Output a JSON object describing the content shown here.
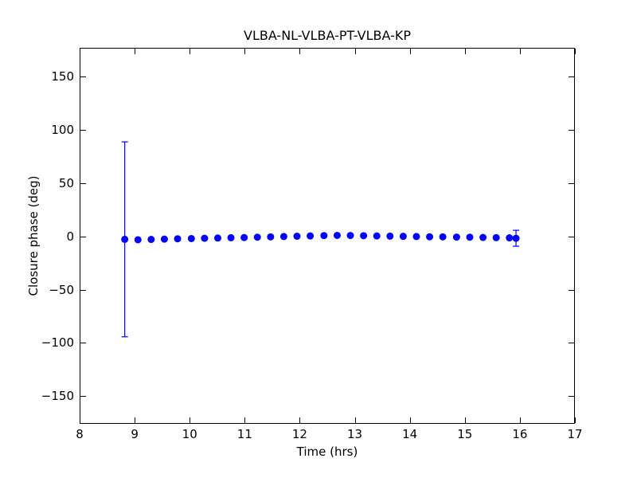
{
  "chart_data": {
    "type": "scatter",
    "title": "VLBA-NL-VLBA-PT-VLBA-KP",
    "xlabel": "Time (hrs)",
    "ylabel": "Closure phase (deg)",
    "xlim": [
      8,
      17
    ],
    "ylim": [
      -176,
      177
    ],
    "xticks": [
      8,
      9,
      10,
      11,
      12,
      13,
      14,
      15,
      16,
      17
    ],
    "xtick_labels": [
      "8",
      "9",
      "10",
      "11",
      "12",
      "13",
      "14",
      "15",
      "16",
      "17"
    ],
    "yticks": [
      150,
      100,
      50,
      0,
      -50,
      -100,
      -150
    ],
    "ytick_labels": [
      "150",
      "100",
      "50",
      "0",
      "−50",
      "−100",
      "−150"
    ],
    "grid": false,
    "legend": "none",
    "marker": "circle",
    "marker_color": "#0000ff",
    "errorbar_color": "#0000ff",
    "axis_color": "#000000",
    "background_color": "#ffffff",
    "series": [
      {
        "name": "closure phase",
        "x": [
          8.82,
          9.06,
          9.3,
          9.54,
          9.78,
          10.03,
          10.27,
          10.51,
          10.75,
          10.99,
          11.23,
          11.47,
          11.71,
          11.95,
          12.19,
          12.44,
          12.68,
          12.92,
          13.16,
          13.4,
          13.64,
          13.88,
          14.12,
          14.36,
          14.6,
          14.85,
          15.09,
          15.33,
          15.57,
          15.81,
          15.93
        ],
        "y": [
          -2.8,
          -3.2,
          -2.9,
          -2.6,
          -2.3,
          -2.1,
          -1.8,
          -1.6,
          -1.3,
          -1.1,
          -0.8,
          -0.5,
          -0.2,
          0.1,
          0.4,
          0.7,
          0.9,
          0.8,
          0.6,
          0.4,
          0.2,
          0.0,
          -0.2,
          -0.4,
          -0.5,
          -0.7,
          -0.8,
          -1.0,
          -1.2,
          -1.4,
          -1.8
        ],
        "yerr": [
          91.5,
          0,
          0,
          0,
          0,
          0,
          0,
          0,
          0,
          0,
          0,
          0,
          0,
          0,
          0,
          0,
          0,
          0,
          0,
          0,
          0,
          0,
          0,
          0,
          0,
          0,
          0,
          0,
          0,
          0,
          7.5
        ]
      }
    ]
  }
}
